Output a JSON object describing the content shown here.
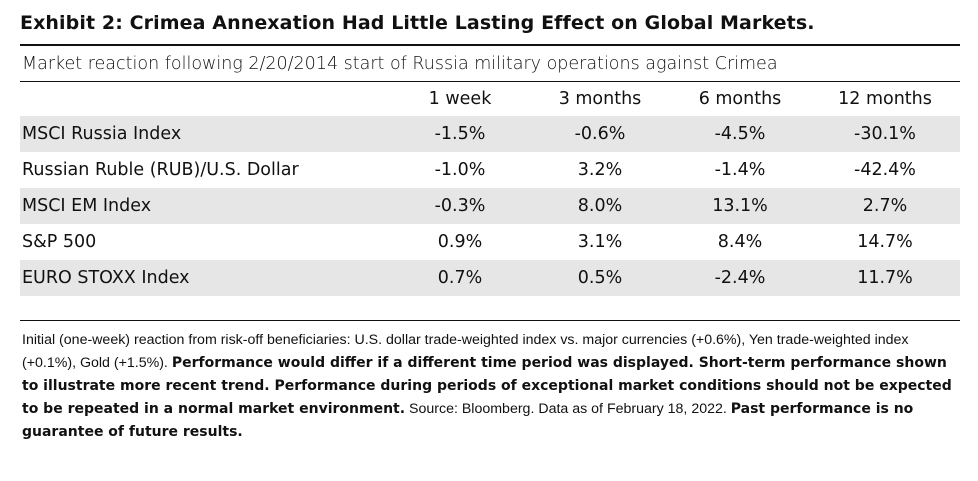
{
  "title": "Exhibit 2: Crimea Annexation Had Little Lasting Effect on Global Markets.",
  "subtitle": "Market reaction following 2/20/2014 start of Russia military operations against Crimea",
  "table": {
    "columns": [
      "1 week",
      "3 months",
      "6 months",
      "12 months"
    ],
    "rows": [
      {
        "label": "MSCI Russia Index",
        "values": [
          "-1.5%",
          "-0.6%",
          "-4.5%",
          "-30.1%"
        ]
      },
      {
        "label": "Russian Ruble (RUB)/U.S. Dollar",
        "values": [
          "-1.0%",
          "3.2%",
          "-1.4%",
          "-42.4%"
        ]
      },
      {
        "label": "MSCI EM Index",
        "values": [
          "-0.3%",
          "8.0%",
          "13.1%",
          "2.7%"
        ]
      },
      {
        "label": "S&P 500",
        "values": [
          "0.9%",
          "3.1%",
          "8.4%",
          "14.7%"
        ]
      },
      {
        "label": "EURO STOXX Index",
        "values": [
          "0.7%",
          "0.5%",
          "-2.4%",
          "11.7%"
        ]
      }
    ]
  },
  "notes": {
    "part1": "Initial (one-week) reaction from risk-off beneficiaries: U.S. dollar trade-weighted index vs. major currencies (+0.6%), Yen trade-weighted index (+0.1%), Gold (+1.5%). ",
    "bold1": "Performance would differ if a different time period was displayed. Short-term performance shown to illustrate more recent trend. Performance during periods of exceptional market conditions should not be expected to be repeated in a normal market environment.",
    "part2": " Source: Bloomberg. Data as of February 18, 2022. ",
    "bold2": "Past performance is no guarantee of future results."
  }
}
